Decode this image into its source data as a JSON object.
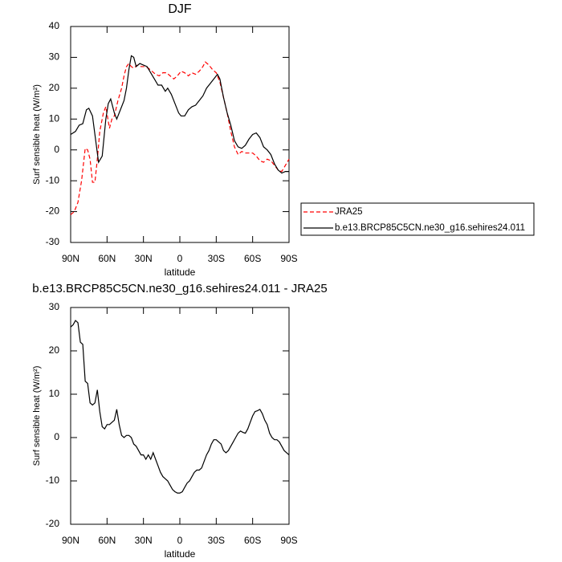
{
  "chart_data": [
    {
      "type": "line",
      "title": "DJF",
      "xlabel": "latitude",
      "ylabel": "Surf sensible heat (W/m²)",
      "xlim": [
        90,
        -90
      ],
      "xticks": [
        {
          "value": 90,
          "label": "90N"
        },
        {
          "value": 60,
          "label": "60N"
        },
        {
          "value": 30,
          "label": "30N"
        },
        0,
        {
          "value": -30,
          "label": "30S"
        },
        {
          "value": -60,
          "label": "60S"
        },
        {
          "value": -90,
          "label": "90S"
        }
      ],
      "ylim": [
        -30,
        40
      ],
      "yticks": [
        -30,
        -20,
        -10,
        0,
        10,
        20,
        30,
        40
      ],
      "legend": "outside-right",
      "series": [
        {
          "name": "JRA25",
          "color": "#ff0000",
          "line_style": "dashed",
          "x": [
            90,
            87,
            84,
            81,
            78,
            76,
            74,
            72,
            70,
            68,
            66,
            63,
            61,
            58,
            56,
            54,
            51,
            48,
            46,
            44,
            42,
            40,
            38,
            35,
            32,
            29,
            26,
            23,
            20,
            17,
            14,
            11,
            8,
            5,
            2,
            -1,
            -4,
            -7,
            -10,
            -13,
            -16,
            -19,
            -21,
            -24,
            -27,
            -30,
            -33,
            -36,
            -39,
            -42,
            -45,
            -48,
            -51,
            -54,
            -57,
            -60,
            -63,
            -66,
            -69,
            -72,
            -75,
            -78,
            -81,
            -84,
            -87,
            -90
          ],
          "values": [
            -21,
            -20,
            -17,
            -10,
            0.5,
            0,
            -3,
            -10.5,
            -10.5,
            -3,
            6,
            12,
            14,
            7,
            10,
            11,
            16,
            20,
            24,
            27,
            28,
            27,
            26.5,
            27.5,
            27,
            27,
            26.5,
            25.5,
            24.5,
            24,
            25,
            25,
            24,
            23,
            24,
            25.5,
            25,
            24,
            25,
            24.5,
            25.5,
            27,
            28.5,
            27.5,
            26,
            25,
            22,
            17,
            12,
            6,
            1,
            -1.5,
            -0.5,
            -1,
            -1,
            -1,
            -2,
            -3.5,
            -4,
            -3,
            -3.5,
            -5,
            -6.5,
            -7,
            -5,
            -3
          ]
        },
        {
          "name": "b.e13.BRCP85C5CN.ne30_g16.sehires24.011",
          "color": "#000000",
          "line_style": "solid",
          "x": [
            90,
            86,
            83,
            80,
            77,
            75,
            72,
            69,
            67,
            64,
            61,
            59,
            57,
            54,
            52,
            49,
            46,
            44,
            42,
            40,
            38,
            36,
            33,
            30,
            27,
            24,
            21,
            18,
            15,
            12,
            10,
            7,
            4,
            1,
            -1,
            -4,
            -7,
            -10,
            -13,
            -16,
            -19,
            -22,
            -25,
            -28,
            -31,
            -33,
            -36,
            -39,
            -42,
            -45,
            -48,
            -51,
            -54,
            -57,
            -60,
            -63,
            -66,
            -69,
            -72,
            -75,
            -78,
            -81,
            -84,
            -87,
            -90
          ],
          "values": [
            5,
            6,
            8,
            8.5,
            13,
            13.5,
            11,
            2,
            -4,
            -2,
            10,
            15,
            16.5,
            12,
            10,
            13,
            16,
            20,
            26,
            30.5,
            30,
            27,
            28,
            27.5,
            27,
            25,
            23,
            21,
            21,
            19,
            20,
            18,
            15,
            12,
            11,
            11,
            13,
            14,
            14.5,
            16,
            17.5,
            20,
            21.5,
            23,
            24.5,
            23,
            17,
            12,
            8,
            3,
            1,
            0.5,
            1.5,
            3.5,
            5,
            5.5,
            4,
            1,
            0,
            -1.5,
            -4.5,
            -6.5,
            -7.5,
            -7,
            -7
          ]
        }
      ]
    },
    {
      "type": "line",
      "title": "b.e13.BRCP85C5CN.ne30_g16.sehires24.011 - JRA25",
      "xlabel": "latitude",
      "ylabel": "Surf sensible heat (W/m²)",
      "xlim": [
        90,
        -90
      ],
      "xticks": [
        {
          "value": 90,
          "label": "90N"
        },
        {
          "value": 60,
          "label": "60N"
        },
        {
          "value": 30,
          "label": "30N"
        },
        0,
        {
          "value": -30,
          "label": "30S"
        },
        {
          "value": -60,
          "label": "60S"
        },
        {
          "value": -90,
          "label": "90S"
        }
      ],
      "ylim": [
        -20,
        30
      ],
      "yticks": [
        -20,
        -10,
        0,
        10,
        20,
        30
      ],
      "series": [
        {
          "color": "#000000",
          "line_style": "solid",
          "x": [
            90,
            88,
            86,
            84,
            82,
            80,
            78,
            76,
            74,
            72,
            70,
            68,
            66,
            64,
            62,
            60,
            58,
            56,
            54,
            52,
            50,
            48,
            46,
            44,
            42,
            40,
            38,
            36,
            34,
            32,
            30,
            28,
            26,
            24,
            22,
            20,
            18,
            16,
            14,
            12,
            10,
            8,
            6,
            4,
            2,
            0,
            -2,
            -4,
            -6,
            -8,
            -10,
            -12,
            -14,
            -16,
            -18,
            -20,
            -22,
            -24,
            -26,
            -28,
            -30,
            -32,
            -34,
            -36,
            -38,
            -40,
            -42,
            -44,
            -46,
            -48,
            -50,
            -52,
            -54,
            -56,
            -58,
            -60,
            -62,
            -64,
            -66,
            -68,
            -70,
            -72,
            -74,
            -76,
            -78,
            -80,
            -82,
            -84,
            -86,
            -88,
            -90
          ],
          "values": [
            25.5,
            26,
            27,
            26.5,
            22,
            21.5,
            13,
            12.5,
            8,
            7.5,
            8,
            11,
            6,
            2.5,
            2,
            3,
            3,
            3.5,
            4,
            6.5,
            3,
            0.5,
            0,
            0.5,
            0.5,
            0,
            -1.5,
            -2,
            -3,
            -4,
            -4,
            -5,
            -4,
            -5,
            -3.5,
            -5,
            -6.5,
            -8,
            -9,
            -9.5,
            -10,
            -11,
            -12,
            -12.5,
            -12.8,
            -12.8,
            -12.5,
            -11.5,
            -10.5,
            -10,
            -9,
            -8,
            -7.5,
            -7.5,
            -7,
            -5.5,
            -4,
            -3,
            -1.5,
            -0.5,
            -0.5,
            -1,
            -1.5,
            -3,
            -3.5,
            -3,
            -2,
            -1,
            0,
            1,
            1.5,
            1.2,
            1,
            2,
            3.5,
            5,
            6,
            6.2,
            6.5,
            5.5,
            4,
            3,
            1,
            0,
            -0.5,
            -0.5,
            -1,
            -2,
            -3,
            -3.5,
            -4
          ]
        }
      ]
    }
  ]
}
